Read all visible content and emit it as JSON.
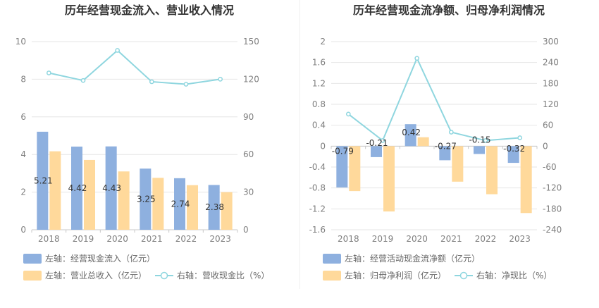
{
  "colors": {
    "bar_blue": "#8eb0df",
    "bar_orange": "#ffd99b",
    "line_teal": "#8fd6df",
    "grid": "#e6e6e6",
    "axis": "#7f7f7f"
  },
  "chart_data": [
    {
      "type": "bar",
      "title": "历年经营现金流入、营业收入情况",
      "categories": [
        "2018",
        "2019",
        "2020",
        "2021",
        "2022",
        "2023"
      ],
      "y_left_ticks": [
        "0",
        "2",
        "4",
        "6",
        "8",
        "10"
      ],
      "y_right_ticks": [
        "0",
        "30",
        "60",
        "90",
        "120",
        "150"
      ],
      "ylim_left": [
        0,
        10
      ],
      "ylim_right": [
        0,
        150
      ],
      "series": [
        {
          "name": "左轴：经营现金流入（亿元）",
          "axis": "left",
          "kind": "bar",
          "values": [
            5.21,
            4.42,
            4.43,
            3.25,
            2.74,
            2.38
          ],
          "labels": [
            "5.21",
            "4.42",
            "4.43",
            "3.25",
            "2.74",
            "2.38"
          ]
        },
        {
          "name": "左轴：营业总收入（亿元）",
          "axis": "left",
          "kind": "bar",
          "values": [
            4.17,
            3.71,
            3.1,
            2.76,
            2.37,
            2.0
          ]
        },
        {
          "name": "右轴：营收现金比（%）",
          "axis": "right",
          "kind": "line",
          "values": [
            125,
            119,
            143,
            118,
            116,
            120
          ]
        }
      ],
      "grid": true,
      "legend_position": "bottom"
    },
    {
      "type": "bar",
      "title": "历年经营现金流净额、归母净利润情况",
      "categories": [
        "2018",
        "2019",
        "2020",
        "2021",
        "2022",
        "2023"
      ],
      "y_left_ticks": [
        "2",
        "1.6",
        "1.2",
        "0.8",
        "0.4",
        "0",
        "-0.4",
        "-0.8",
        "-1.2",
        "-1.6"
      ],
      "y_right_ticks": [
        "300",
        "240",
        "180",
        "120",
        "60",
        "0",
        "-60",
        "-120",
        "-180",
        "-240"
      ],
      "ylim_left": [
        -1.6,
        2
      ],
      "ylim_right": [
        -240,
        300
      ],
      "series": [
        {
          "name": "左轴：经营活动现金流净额（亿元）",
          "axis": "left",
          "kind": "bar",
          "values": [
            -0.79,
            -0.21,
            0.42,
            -0.27,
            -0.15,
            -0.32
          ],
          "labels": [
            "-0.79",
            "-0.21",
            "0.42",
            "-0.27",
            "-0.15",
            "-0.32"
          ]
        },
        {
          "name": "左轴：归母净利润（亿元）",
          "axis": "left",
          "kind": "bar",
          "values": [
            -0.86,
            -1.25,
            0.17,
            -0.68,
            -0.92,
            -1.28
          ]
        },
        {
          "name": "右轴：净现比（%）",
          "axis": "right",
          "kind": "line",
          "values": [
            92,
            16,
            252,
            40,
            16,
            24
          ]
        }
      ],
      "grid": true,
      "legend_position": "bottom"
    }
  ]
}
